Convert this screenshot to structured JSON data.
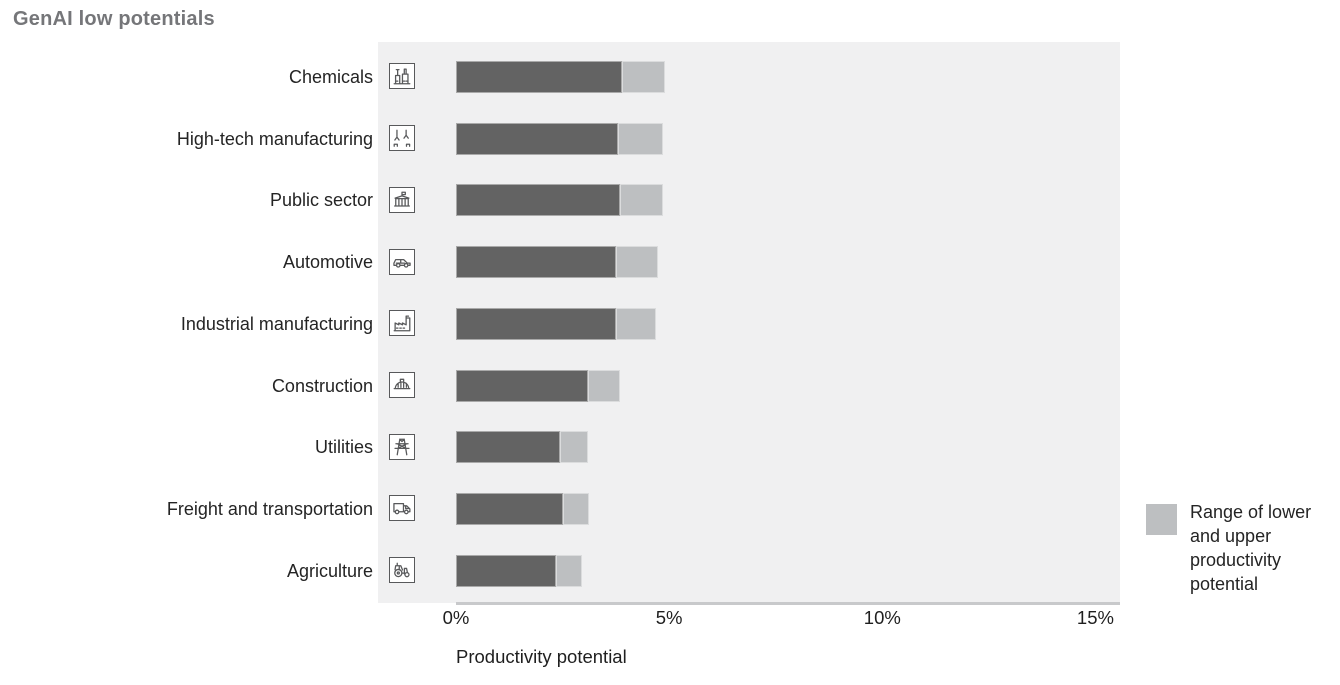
{
  "title": "GenAI low potentials",
  "legend": {
    "label": "Range of lower and upper productivity potential",
    "swatch_color": "#bdbfc1"
  },
  "colors": {
    "bar_lower": "#636363",
    "bar_range": "#bdbfc1",
    "plot_background": "#f0f0f1",
    "axis_line": "#c8c9cb",
    "title_text": "#757679",
    "icon_stroke": "#58595b"
  },
  "chart_data": {
    "type": "bar",
    "orientation": "horizontal",
    "title": "GenAI low potentials",
    "xlabel": "Productivity potential",
    "ylabel": "",
    "xlim": [
      0,
      15.6
    ],
    "xtick_values": [
      0,
      5,
      10,
      15
    ],
    "xticks": [
      "0%",
      "5%",
      "10%",
      "15%"
    ],
    "grid": false,
    "legend_position": "right",
    "categories": [
      "Chemicals",
      "High-tech manufacturing",
      "Public sector",
      "Automotive",
      "Industrial manufacturing",
      "Construction",
      "Utilities",
      "Freight and transportation",
      "Agriculture"
    ],
    "icons": [
      "chemicals-plant-icon",
      "robotic-arms-icon",
      "government-building-icon",
      "car-icon",
      "factory-icon",
      "hard-hat-icon",
      "power-pylon-icon",
      "truck-icon",
      "tractor-icon"
    ],
    "series": [
      {
        "name": "Lower productivity potential",
        "color": "#636363",
        "values": [
          3.9,
          3.8,
          3.85,
          3.75,
          3.75,
          3.1,
          2.45,
          2.5,
          2.35
        ]
      },
      {
        "name": "Upper productivity potential",
        "color": "#bdbfc1",
        "values": [
          4.9,
          4.85,
          4.85,
          4.75,
          4.7,
          3.85,
          3.1,
          3.12,
          2.96
        ]
      }
    ]
  }
}
